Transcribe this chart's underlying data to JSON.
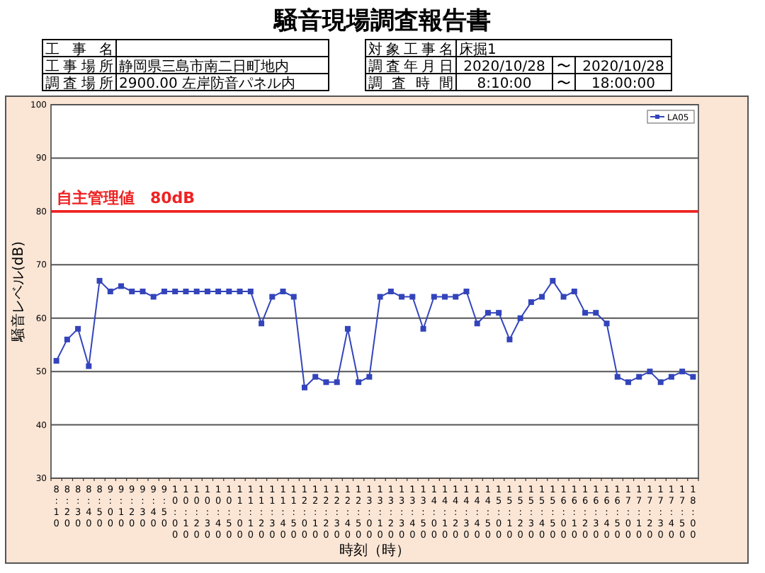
{
  "chart_data": {
    "type": "line",
    "title": "騒音現場調査報告書",
    "annotations": [
      "工事名",
      "工事場所",
      "静岡県三島市南二日町地内",
      "調査場所",
      "2900.00 左岸防音パネル内",
      "対象工事名",
      "床掘1",
      "調査年月日",
      "2020/10/28",
      "〜",
      "2020/10/28",
      "調査時間",
      "8:10:00",
      "〜",
      "18:00:00"
    ],
    "xlabel": "時刻（時）",
    "ylabel": "騒音レベル(dB)",
    "categories": [
      "8:10",
      "8:20",
      "8:30",
      "8:40",
      "8:50",
      "9:00",
      "9:10",
      "9:20",
      "9:30",
      "9:40",
      "9:50",
      "10:00",
      "10:10",
      "10:20",
      "10:30",
      "10:40",
      "10:50",
      "11:00",
      "11:10",
      "11:20",
      "11:30",
      "11:40",
      "11:50",
      "12:00",
      "12:10",
      "12:20",
      "12:30",
      "12:40",
      "12:50",
      "13:00",
      "13:10",
      "13:20",
      "13:30",
      "13:40",
      "13:50",
      "14:00",
      "14:10",
      "14:20",
      "14:30",
      "14:40",
      "14:50",
      "15:00",
      "15:10",
      "15:20",
      "15:30",
      "15:40",
      "15:50",
      "16:00",
      "16:10",
      "16:20",
      "16:30",
      "16:40",
      "16:50",
      "17:00",
      "17:10",
      "17:20",
      "17:30",
      "17:40",
      "17:50",
      "18:00"
    ],
    "series": [
      {
        "name": "LA05",
        "color": "#3344bb",
        "values": [
          52,
          56,
          58,
          51,
          67,
          65,
          66,
          65,
          65,
          64,
          65,
          65,
          65,
          65,
          65,
          65,
          65,
          65,
          65,
          59,
          64,
          65,
          64,
          47,
          49,
          48,
          48,
          58,
          48,
          49,
          64,
          65,
          64,
          64,
          58,
          64,
          64,
          64,
          65,
          59,
          61,
          61,
          56,
          60,
          63,
          64,
          67,
          64,
          65,
          61,
          61,
          59,
          49,
          48,
          49,
          50,
          48,
          49,
          50,
          49
        ]
      }
    ],
    "ylim": [
      30,
      100
    ],
    "yticks": [
      30,
      40,
      50,
      60,
      70,
      80,
      90,
      100
    ],
    "grid": "y",
    "marker": "square",
    "line_style": "solid",
    "legend": "top right",
    "ref_lines": [
      {
        "axis": "y",
        "value": 80,
        "label": "自主管理値　80dB",
        "color": "#ee2222"
      }
    ]
  }
}
